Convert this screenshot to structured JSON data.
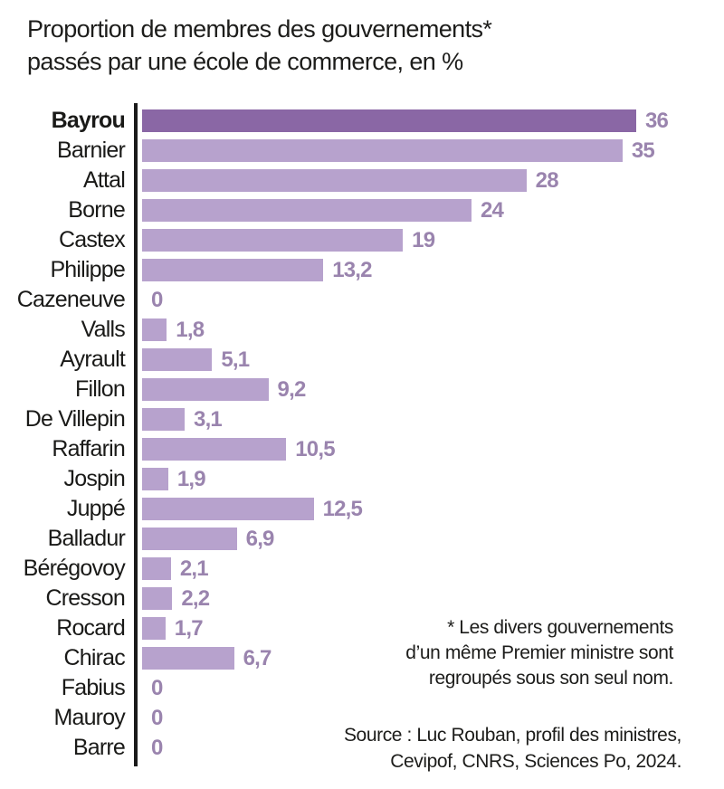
{
  "title": {
    "line1": "Proportion de membres des gouvernements*",
    "line2": "passés par une école de commerce, en %"
  },
  "chart_data": {
    "type": "bar",
    "orientation": "horizontal",
    "title": "Proportion de membres des gouvernements passés par une école de commerce, en %",
    "unit": "%",
    "categories": [
      "Bayrou",
      "Barnier",
      "Attal",
      "Borne",
      "Castex",
      "Philippe",
      "Cazeneuve",
      "Valls",
      "Ayrault",
      "Fillon",
      "De Villepin",
      "Raffarin",
      "Jospin",
      "Juppé",
      "Balladur",
      "Bérégovoy",
      "Cresson",
      "Rocard",
      "Chirac",
      "Fabius",
      "Mauroy",
      "Barre"
    ],
    "values": [
      36,
      35,
      28,
      24,
      19,
      13.2,
      0,
      1.8,
      5.1,
      9.2,
      3.1,
      10.5,
      1.9,
      12.5,
      6.9,
      2.1,
      2.2,
      1.7,
      6.7,
      0,
      0,
      0
    ],
    "value_labels": [
      "36",
      "35",
      "28",
      "24",
      "19",
      "13,2",
      "0",
      "1,8",
      "5,1",
      "9,2",
      "3,1",
      "10,5",
      "1,9",
      "12,5",
      "6,9",
      "2,1",
      "2,2",
      "1,7",
      "6,7",
      "0",
      "0",
      "0"
    ],
    "xlim": [
      0,
      36
    ],
    "grid": false,
    "legend": false,
    "highlight_category": "Bayrou",
    "colors": {
      "bar": "#b7a2cd",
      "highlight_bar": "#8a67a5",
      "value_label": "#9a84ae",
      "axis": "#1a1a1a"
    }
  },
  "footnote": {
    "lines": [
      "* Les divers gouvernements",
      "d’un même Premier ministre sont",
      "regroupés sous son seul nom."
    ]
  },
  "source": {
    "lines": [
      "Source : Luc Rouban, profil des ministres,",
      "Cevipof, CNRS, Sciences Po, 2024."
    ]
  }
}
